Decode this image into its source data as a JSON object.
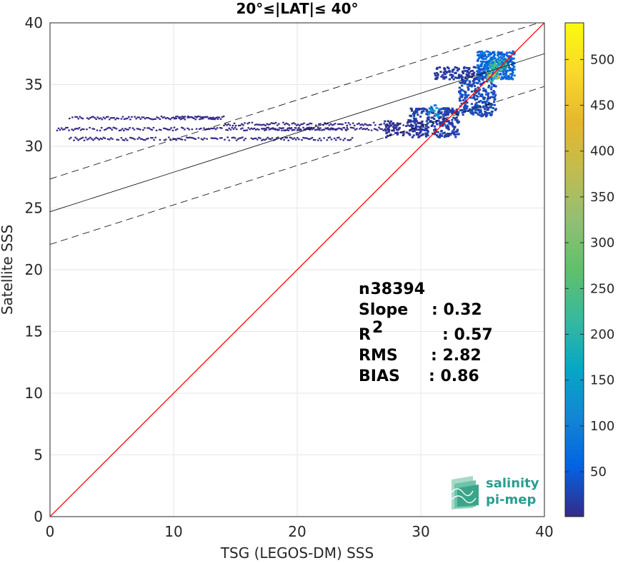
{
  "chart_data": {
    "type": "heatmap",
    "title": "20°≤|LAT|≤ 40°",
    "xlabel": "TSG (LEGOS-DM) SSS",
    "ylabel": "Satellite SSS",
    "xlim": [
      0,
      40
    ],
    "ylim": [
      0,
      40
    ],
    "xticks": [
      "0",
      "10",
      "20",
      "30",
      "40"
    ],
    "yticks": [
      "0",
      "5",
      "10",
      "15",
      "20",
      "25",
      "30",
      "35",
      "40"
    ],
    "grid": true,
    "colorbar": {
      "range": [
        1,
        540
      ],
      "ticks": [
        "50",
        "100",
        "150",
        "200",
        "250",
        "300",
        "350",
        "400",
        "450",
        "500"
      ],
      "colormap": "parula"
    },
    "fit_line": {
      "slope": 0.32,
      "intercept": 24.7,
      "band_offset": 2.65
    },
    "identity_line": {
      "slope": 1,
      "intercept": 0,
      "color": "#ff0000"
    },
    "stats": {
      "labels": [
        "n",
        "Slope",
        "R",
        "RMS",
        "BIAS"
      ],
      "r_superscript": "2",
      "values": [
        ": 38394",
        ": 0.32",
        ": 0.57",
        ": 2.82",
        ": 0.86"
      ]
    },
    "density_rows": [
      {
        "y": 32.3,
        "x": [
          [
            1.5,
            14.0,
            1
          ],
          [
            10.0,
            13.5,
            3
          ]
        ]
      },
      {
        "y": 31.4,
        "x": [
          [
            0.5,
            28.0,
            1
          ],
          [
            17.0,
            24.0,
            2
          ]
        ]
      },
      {
        "y": 30.6,
        "x": [
          [
            1.5,
            12.5,
            1
          ],
          [
            12.5,
            24.5,
            1
          ]
        ]
      },
      {
        "y": 31.8,
        "x": [
          [
            14.0,
            29.0,
            1
          ]
        ]
      }
    ],
    "density_clusters": [
      {
        "x": [
          29,
          33
        ],
        "y": [
          30.8,
          33.2
        ],
        "count": 280,
        "level": 20
      },
      {
        "x": [
          33,
          36
        ],
        "y": [
          32.5,
          35.5
        ],
        "count": 260,
        "level": 30
      },
      {
        "x": [
          31,
          35
        ],
        "y": [
          35.5,
          36.5
        ],
        "count": 120,
        "level": 15
      },
      {
        "x": [
          34.5,
          37.5
        ],
        "y": [
          35.5,
          37.8
        ],
        "count": 320,
        "level": 60
      },
      {
        "x": [
          35.5,
          37
        ],
        "y": [
          36.2,
          37.2
        ],
        "count": 60,
        "level": 180
      },
      {
        "x": [
          35.3,
          36.2
        ],
        "y": [
          35.3,
          36.2
        ],
        "count": 25,
        "level": 260
      },
      {
        "x": [
          30.5,
          31.5
        ],
        "y": [
          32.5,
          33.5
        ],
        "count": 20,
        "level": 120
      },
      {
        "x": [
          27,
          30
        ],
        "y": [
          30.8,
          32.2
        ],
        "count": 80,
        "level": 8
      }
    ]
  },
  "logo": {
    "line1": "salinity",
    "line2": "pi-mep"
  }
}
